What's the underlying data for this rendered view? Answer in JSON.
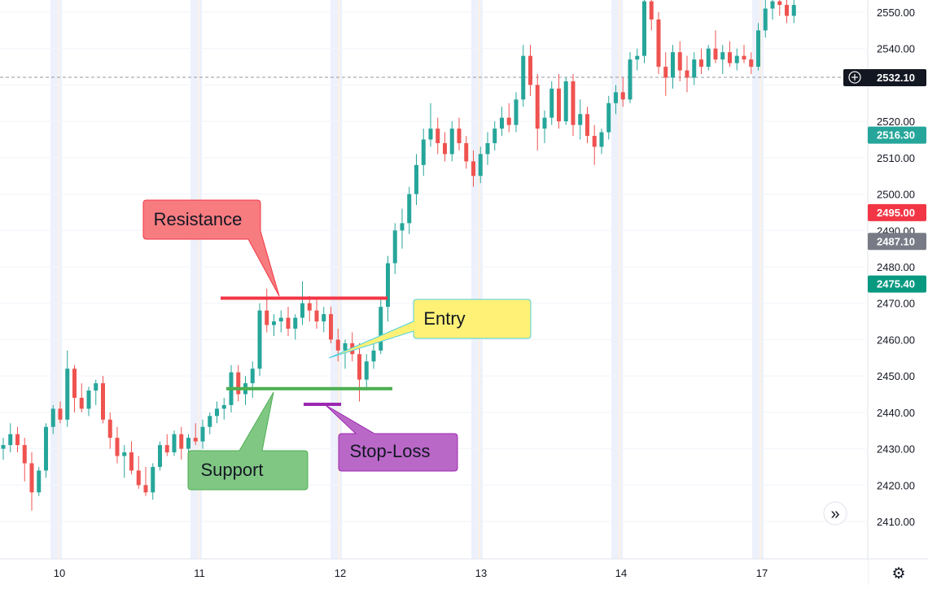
{
  "chart_data": {
    "type": "candlestick",
    "x_tick_labels": [
      "10",
      "11",
      "12",
      "13",
      "14",
      "17"
    ],
    "y_tick_labels": [
      "2550.00",
      "2540.00",
      "2520.00",
      "2510.00",
      "2500.00",
      "2490.00",
      "2480.00",
      "2470.00",
      "2460.00",
      "2450.00",
      "2440.00",
      "2430.00",
      "2420.00",
      "2410.00"
    ],
    "ylim": [
      2404,
      2553
    ],
    "grid": true,
    "colors": {
      "up": "#26a69a",
      "down": "#ef5350",
      "grid": "#f0f3fa",
      "session": "#e9eefb",
      "session_edge": "#fff1e0",
      "text": "#131722"
    },
    "price_labels": [
      {
        "text": "2532.10",
        "value": 2532.1,
        "color": "#131722",
        "has_icon": true,
        "icon": "plus-circle-icon"
      },
      {
        "text": "2516.30",
        "value": 2516.3,
        "color": "#26a69a"
      },
      {
        "text": "2495.00",
        "value": 2495.0,
        "color": "#f23645"
      },
      {
        "text": "2487.10",
        "value": 2487.1,
        "color": "#787b86"
      },
      {
        "text": "2475.40",
        "value": 2475.4,
        "color": "#089981"
      }
    ],
    "current_price_line": 2532.1,
    "annotations": [
      {
        "label": "Resistance",
        "level": 2471.4,
        "line_color": "#f23645",
        "box_color": "#f77c80",
        "border": "#f23645"
      },
      {
        "label": "Support",
        "level": 2446.5,
        "line_color": "#4caf50",
        "box_color": "#81c784",
        "border": "#4caf50"
      },
      {
        "label": "Entry",
        "level": 2455.5,
        "box_color": "#fff176",
        "border": "#4dd0e1"
      },
      {
        "label": "Stop-Loss",
        "level": 2442.2,
        "line_color": "#9c27b0",
        "box_color": "#ba68c8",
        "border": "#9c27b0"
      }
    ],
    "candles": [
      [
        2430,
        2433,
        2427,
        2431
      ],
      [
        2431,
        2437,
        2429,
        2434
      ],
      [
        2434,
        2436,
        2429,
        2431
      ],
      [
        2431,
        2433,
        2421,
        2426
      ],
      [
        2426,
        2429,
        2413,
        2418
      ],
      [
        2418,
        2425,
        2417,
        2424
      ],
      [
        2424,
        2437,
        2422,
        2436
      ],
      [
        2436,
        2442,
        2434,
        2441
      ],
      [
        2441,
        2443,
        2437,
        2438
      ],
      [
        2438,
        2457,
        2436,
        2452
      ],
      [
        2452,
        2453,
        2440,
        2444
      ],
      [
        2444,
        2448,
        2440,
        2441
      ],
      [
        2441,
        2447,
        2439,
        2446
      ],
      [
        2446,
        2449,
        2442,
        2448
      ],
      [
        2448,
        2450,
        2437,
        2438
      ],
      [
        2438,
        2440,
        2430,
        2433
      ],
      [
        2433,
        2436,
        2426,
        2428
      ],
      [
        2428,
        2431,
        2422,
        2429
      ],
      [
        2429,
        2432,
        2423,
        2424
      ],
      [
        2424,
        2428,
        2419,
        2420
      ],
      [
        2420,
        2425,
        2417,
        2418
      ],
      [
        2418,
        2426,
        2416,
        2425
      ],
      [
        2425,
        2432,
        2424,
        2431
      ],
      [
        2431,
        2434,
        2428,
        2429
      ],
      [
        2429,
        2435,
        2428,
        2434
      ],
      [
        2434,
        2436,
        2427,
        2430
      ],
      [
        2430,
        2434,
        2428,
        2433
      ],
      [
        2433,
        2437,
        2431,
        2432
      ],
      [
        2432,
        2438,
        2430,
        2436
      ],
      [
        2436,
        2440,
        2434,
        2439
      ],
      [
        2439,
        2443,
        2437,
        2441
      ],
      [
        2441,
        2444,
        2438,
        2442
      ],
      [
        2442,
        2453,
        2440,
        2451
      ],
      [
        2451,
        2453,
        2443,
        2445
      ],
      [
        2445,
        2450,
        2442,
        2448
      ],
      [
        2448,
        2454,
        2444,
        2452
      ],
      [
        2452,
        2470,
        2450,
        2468
      ],
      [
        2468,
        2474,
        2462,
        2464
      ],
      [
        2464,
        2467,
        2461,
        2465
      ],
      [
        2465,
        2468,
        2462,
        2466
      ],
      [
        2466,
        2469,
        2461,
        2463
      ],
      [
        2463,
        2467,
        2460,
        2466
      ],
      [
        2466,
        2476,
        2464,
        2470
      ],
      [
        2470,
        2472,
        2465,
        2468
      ],
      [
        2468,
        2471,
        2463,
        2465
      ],
      [
        2465,
        2469,
        2462,
        2467
      ],
      [
        2467,
        2469,
        2459,
        2460
      ],
      [
        2460,
        2463,
        2454,
        2457
      ],
      [
        2457,
        2460,
        2452,
        2459
      ],
      [
        2459,
        2462,
        2454,
        2456
      ],
      [
        2456,
        2459,
        2443,
        2449
      ],
      [
        2449,
        2456,
        2446,
        2454
      ],
      [
        2454,
        2460,
        2452,
        2457
      ],
      [
        2457,
        2471,
        2456,
        2469
      ],
      [
        2469,
        2483,
        2465,
        2481
      ],
      [
        2481,
        2492,
        2478,
        2490
      ],
      [
        2490,
        2496,
        2485,
        2492
      ],
      [
        2492,
        2502,
        2489,
        2500
      ],
      [
        2500,
        2511,
        2497,
        2508
      ],
      [
        2508,
        2518,
        2505,
        2515
      ],
      [
        2515,
        2525,
        2513,
        2518
      ],
      [
        2518,
        2521,
        2511,
        2514
      ],
      [
        2514,
        2517,
        2509,
        2511
      ],
      [
        2511,
        2520,
        2509,
        2518
      ],
      [
        2518,
        2521,
        2512,
        2514
      ],
      [
        2514,
        2516,
        2507,
        2509
      ],
      [
        2509,
        2512,
        2502,
        2505
      ],
      [
        2505,
        2513,
        2503,
        2511
      ],
      [
        2511,
        2517,
        2508,
        2514
      ],
      [
        2514,
        2520,
        2512,
        2518
      ],
      [
        2518,
        2524,
        2516,
        2521
      ],
      [
        2521,
        2525,
        2517,
        2519
      ],
      [
        2519,
        2528,
        2517,
        2526
      ],
      [
        2526,
        2541,
        2524,
        2538
      ],
      [
        2538,
        2541,
        2527,
        2530
      ],
      [
        2530,
        2533,
        2512,
        2518
      ],
      [
        2518,
        2523,
        2514,
        2521
      ],
      [
        2521,
        2531,
        2519,
        2529
      ],
      [
        2529,
        2533,
        2518,
        2520
      ],
      [
        2520,
        2532,
        2519,
        2531
      ],
      [
        2531,
        2533,
        2516,
        2519
      ],
      [
        2519,
        2526,
        2515,
        2522
      ],
      [
        2522,
        2524,
        2514,
        2516
      ],
      [
        2516,
        2519,
        2508,
        2513
      ],
      [
        2513,
        2518,
        2511,
        2517
      ],
      [
        2517,
        2527,
        2515,
        2525
      ],
      [
        2525,
        2530,
        2522,
        2528
      ],
      [
        2528,
        2532,
        2524,
        2526
      ],
      [
        2526,
        2539,
        2525,
        2537
      ],
      [
        2537,
        2540,
        2534,
        2538
      ],
      [
        2538,
        2557,
        2536,
        2553
      ],
      [
        2553,
        2558,
        2545,
        2548
      ],
      [
        2548,
        2550,
        2533,
        2535
      ],
      [
        2535,
        2539,
        2527,
        2532
      ],
      [
        2532,
        2541,
        2529,
        2539
      ],
      [
        2539,
        2542,
        2531,
        2534
      ],
      [
        2534,
        2538,
        2528,
        2532
      ],
      [
        2532,
        2539,
        2530,
        2537
      ],
      [
        2537,
        2540,
        2533,
        2535
      ],
      [
        2535,
        2541,
        2534,
        2540
      ],
      [
        2540,
        2545,
        2536,
        2537
      ],
      [
        2537,
        2541,
        2533,
        2539
      ],
      [
        2539,
        2542,
        2535,
        2536
      ],
      [
        2536,
        2540,
        2534,
        2538
      ],
      [
        2538,
        2541,
        2536,
        2537
      ],
      [
        2537,
        2539,
        2533,
        2535
      ],
      [
        2535,
        2547,
        2534,
        2545
      ],
      [
        2545,
        2554,
        2543,
        2551
      ],
      [
        2551,
        2556,
        2548,
        2553
      ],
      [
        2553,
        2556,
        2549,
        2552
      ],
      [
        2552,
        2554,
        2547,
        2549
      ],
      [
        2549,
        2555,
        2547,
        2552
      ]
    ]
  },
  "controls": {
    "scroll_icon": "double-chevron-right-icon",
    "scroll_glyph": "»",
    "settings_icon": "gear-icon",
    "settings_glyph": "⚙"
  }
}
